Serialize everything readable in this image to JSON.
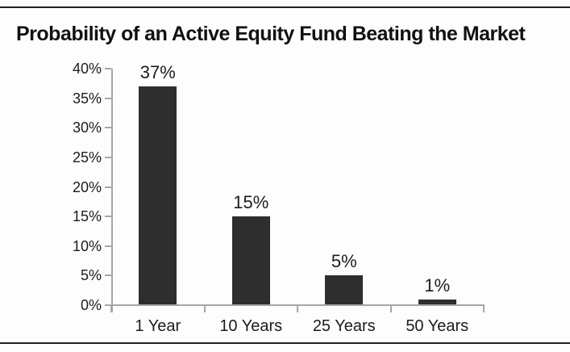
{
  "title": "Probability of an Active Equity Fund Beating the Market",
  "chart_data": {
    "type": "bar",
    "title": "Probability of an Active Equity Fund Beating the Market",
    "categories": [
      "1 Year",
      "10 Years",
      "25 Years",
      "50 Years"
    ],
    "values": [
      37,
      15,
      5,
      1
    ],
    "value_labels": [
      "37%",
      "15%",
      "5%",
      "1%"
    ],
    "ytick_labels": [
      "0%",
      "5%",
      "10%",
      "15%",
      "20%",
      "25%",
      "30%",
      "35%",
      "40%"
    ],
    "ytick_values": [
      0,
      5,
      10,
      15,
      20,
      25,
      30,
      35,
      40
    ],
    "ylim": [
      0,
      40
    ],
    "xlabel": "",
    "ylabel": "",
    "grid": false,
    "legend": "none",
    "bar_color": "#2e2e2e",
    "axis_color": "#a6a6a6",
    "text_color": "#1c1c1c",
    "rule_color": "#222222"
  }
}
